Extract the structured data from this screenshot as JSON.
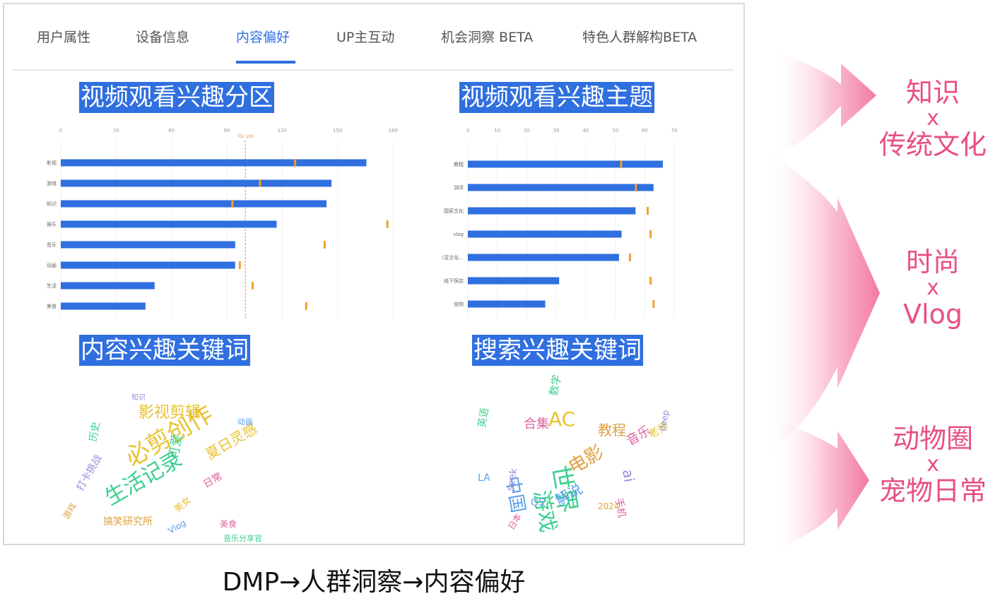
{
  "tabs": [
    {
      "label": "用户属性",
      "active": false
    },
    {
      "label": "设备信息",
      "active": false
    },
    {
      "label": "内容偏好",
      "active": true
    },
    {
      "label": "UP主互动",
      "active": false
    },
    {
      "label": "机会洞察 BETA",
      "active": false
    },
    {
      "label": "特色人群解构BETA",
      "active": false
    }
  ],
  "sections": {
    "partition_title": "视频观看兴趣分区",
    "topic_title": "视频观看兴趣主题",
    "content_keywords_title": "内容兴趣关键词",
    "search_keywords_title": "搜索兴趣关键词"
  },
  "chart_data": [
    {
      "type": "bar",
      "orientation": "horizontal",
      "categories": [
        "影视",
        "游戏",
        "知识",
        "娱乐",
        "音乐",
        "动画",
        "生活",
        "美食"
      ],
      "values": [
        36.8,
        32.6,
        32.0,
        26.0,
        21.0,
        21.0,
        11.3,
        10.2
      ],
      "tgi_markers": [
        127,
        108,
        93,
        177,
        143,
        97,
        104,
        133
      ],
      "top_axis_ticks": [
        "0",
        "30",
        "60",
        "90",
        "120",
        "150",
        "180"
      ],
      "top_axis_range": [
        0,
        180
      ],
      "bottom_axis_ticks": [
        "0.0%",
        "10.0%",
        "20.0%",
        "30.0%",
        "40.0%"
      ],
      "bottom_axis_range": [
        0,
        40
      ],
      "reference_line_label": "TGI 100",
      "reference_line_value": 100,
      "colors": {
        "bar": "#2f6fe0",
        "marker": "#f0a030",
        "reference": "#f08040"
      }
    },
    {
      "type": "bar",
      "orientation": "horizontal",
      "categories": [
        "教程",
        "测评",
        "国家文化",
        "vlog",
        "(亚文化...",
        "线下探店",
        "宠物"
      ],
      "values": [
        37.8,
        36.0,
        32.5,
        29.8,
        29.3,
        17.7,
        15.0
      ],
      "tgi_markers": [
        52,
        57,
        61,
        62,
        55,
        62,
        63
      ],
      "top_axis_ticks": [
        "0",
        "10",
        "20",
        "30",
        "40",
        "50",
        "60",
        "70"
      ],
      "top_axis_range": [
        0,
        70
      ],
      "bottom_axis_ticks": [
        "0.0%",
        "10.0%",
        "20.0%",
        "30.0%",
        "40.0%"
      ],
      "bottom_axis_range": [
        0,
        40
      ],
      "colors": {
        "bar": "#2f6fe0",
        "marker": "#f0a030"
      }
    }
  ],
  "wordcloud_left": [
    "必剪创作",
    "生活记录",
    "影视剪辑",
    "夏日灵感",
    "可爱",
    "日常",
    "打卡挑战",
    "Vlog",
    "搞笑研究所",
    "美食",
    "历史",
    "知识",
    "动画",
    "音乐分享官",
    "游戏",
    "美女"
  ],
  "wordcloud_right": [
    "世界",
    "游戏",
    "中国",
    "AC",
    "电影",
    "教程",
    "解说",
    "音乐",
    "英语",
    "合集",
    "ai",
    "老师",
    "数学",
    "手机",
    "日本",
    "deep",
    "seek",
    "OS",
    "LA",
    "2024"
  ],
  "side_notes": [
    {
      "line1": "知识",
      "line2": "x",
      "line3": "传统文化"
    },
    {
      "line1": "时尚",
      "line2": "x",
      "line3": "Vlog"
    },
    {
      "line1": "动物圈",
      "line2": "x",
      "line3": "宠物日常"
    }
  ],
  "caption": "DMP→人群洞察→内容偏好",
  "colors": {
    "accent": "#2f6fe0",
    "pink": "#e84f86"
  }
}
